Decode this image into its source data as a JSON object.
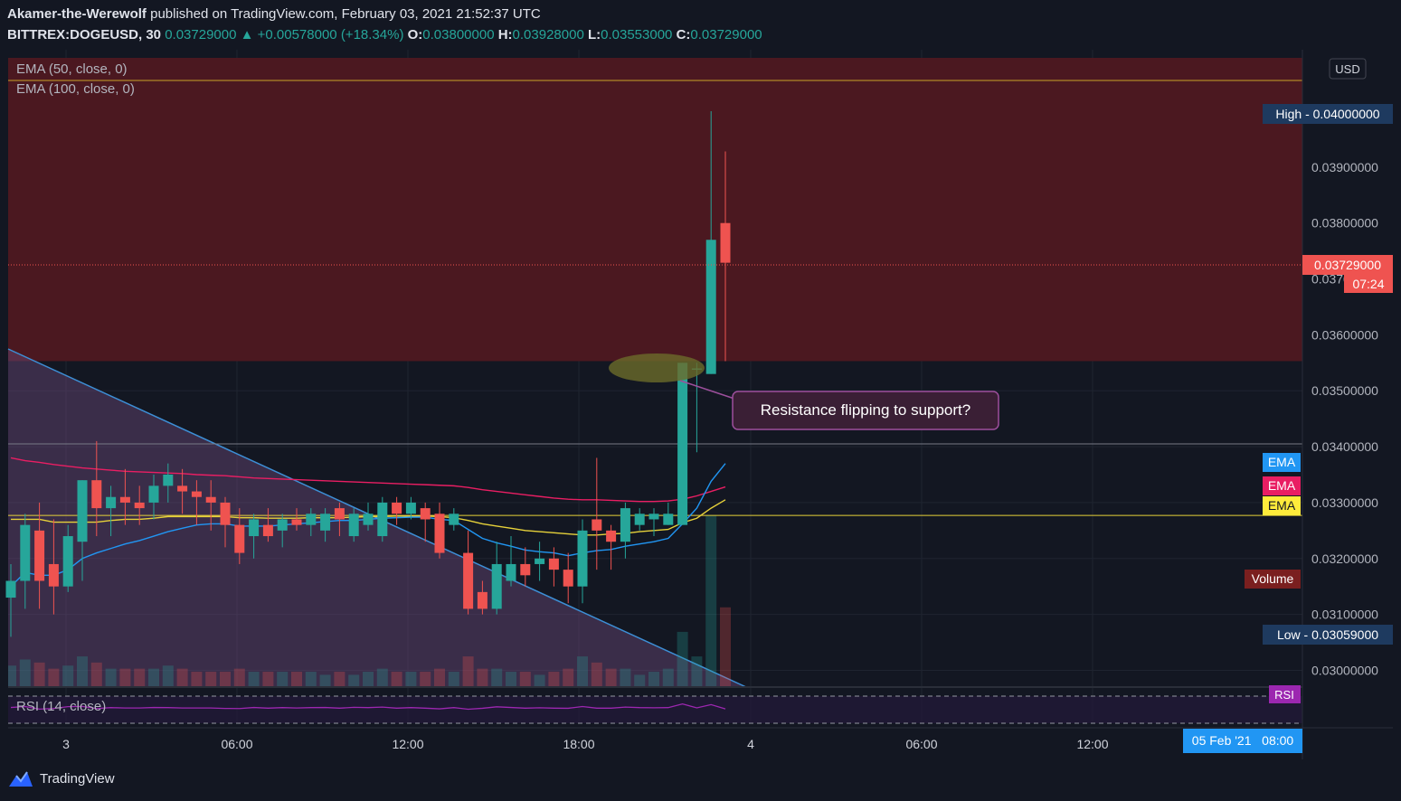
{
  "header": {
    "author": "Akamer-the-Werewolf",
    "published_text": "published on TradingView.com, February 03, 2021 21:52:37 UTC",
    "symbol": "BITTREX:DOGEUSD, 30",
    "last": "0.03729000",
    "change": "▲ +0.00578000 (+18.34%)",
    "o_label": "O:",
    "o": "0.03800000",
    "h_label": "H:",
    "h": "0.03928000",
    "l_label": "L:",
    "l": "0.03553000",
    "c_label": "C:",
    "c": "0.03729000"
  },
  "legend": {
    "ema50": "EMA (50, close, 0)",
    "ema100": "EMA (100, close, 0)",
    "rsi": "RSI (14, close)"
  },
  "annotation": "Resistance flipping to support?",
  "price_axis": {
    "currency": "USD",
    "ticks": [
      "0.04000000",
      "0.03900000",
      "0.03800000",
      "0.03700000",
      "0.03600000",
      "0.03500000",
      "0.03400000",
      "0.03300000",
      "0.03200000",
      "0.03100000",
      "0.03000000"
    ],
    "labels": {
      "high": "High - 0.04000000",
      "last": "0.03729000",
      "countdown": "07:24",
      "ema_tag": "EMA",
      "volume": "Volume",
      "low": "Low - 0.03059000",
      "rsi": "RSI"
    }
  },
  "time_axis": {
    "ticks": [
      "3",
      "06:00",
      "12:00",
      "18:00",
      "4",
      "06:00",
      "12:00"
    ],
    "crosshair": "05 Feb '21   08:00"
  },
  "footer": {
    "brand": "TradingView"
  },
  "colors": {
    "background": "#131722",
    "up": "#26a69a",
    "down": "#ef5350",
    "resistance_zone": "#4b1820",
    "ema_yellow": "#e6d13a",
    "ema_pink": "#e91e63",
    "ema_blue": "#2196f3",
    "wedge": "#4a3a55",
    "rsi": "#9c27b0"
  },
  "chart_data": {
    "type": "candlestick",
    "timeframe": "30",
    "ylim": [
      0.0297,
      0.0411
    ],
    "candles": [
      [
        0.0313,
        0.0316,
        0.0306,
        0.0319
      ],
      [
        0.0316,
        0.0326,
        0.0311,
        0.0328
      ],
      [
        0.0325,
        0.0316,
        0.0311,
        0.033
      ],
      [
        0.0319,
        0.0315,
        0.031,
        0.0327
      ],
      [
        0.0315,
        0.0324,
        0.0314,
        0.0326
      ],
      [
        0.0323,
        0.0334,
        0.0316,
        0.0334
      ],
      [
        0.0334,
        0.0329,
        0.0324,
        0.0341
      ],
      [
        0.0329,
        0.0331,
        0.0324,
        0.0333
      ],
      [
        0.0331,
        0.033,
        0.0326,
        0.0336
      ],
      [
        0.033,
        0.0329,
        0.0326,
        0.0333
      ],
      [
        0.033,
        0.0333,
        0.0327,
        0.0335
      ],
      [
        0.0333,
        0.0335,
        0.033,
        0.0337
      ],
      [
        0.0333,
        0.0332,
        0.0328,
        0.0336
      ],
      [
        0.0332,
        0.0331,
        0.0326,
        0.0334
      ],
      [
        0.0331,
        0.033,
        0.0325,
        0.0334
      ],
      [
        0.033,
        0.0326,
        0.0322,
        0.0331
      ],
      [
        0.0326,
        0.0321,
        0.0319,
        0.0329
      ],
      [
        0.0324,
        0.0327,
        0.032,
        0.0328
      ],
      [
        0.0326,
        0.0324,
        0.0323,
        0.0329
      ],
      [
        0.0325,
        0.0327,
        0.0322,
        0.0328
      ],
      [
        0.0327,
        0.0326,
        0.0325,
        0.0329
      ],
      [
        0.0326,
        0.0328,
        0.0324,
        0.0329
      ],
      [
        0.0325,
        0.0328,
        0.0323,
        0.0329
      ],
      [
        0.0329,
        0.0327,
        0.0324,
        0.033
      ],
      [
        0.0324,
        0.0328,
        0.0323,
        0.0329
      ],
      [
        0.0326,
        0.0328,
        0.0325,
        0.033
      ],
      [
        0.0324,
        0.033,
        0.0323,
        0.0331
      ],
      [
        0.033,
        0.0328,
        0.0326,
        0.0331
      ],
      [
        0.0328,
        0.033,
        0.0327,
        0.0331
      ],
      [
        0.0329,
        0.0327,
        0.0323,
        0.033
      ],
      [
        0.0328,
        0.0321,
        0.032,
        0.033
      ],
      [
        0.0326,
        0.0328,
        0.0325,
        0.0329
      ],
      [
        0.0321,
        0.0311,
        0.031,
        0.0325
      ],
      [
        0.0314,
        0.0311,
        0.031,
        0.0316
      ],
      [
        0.0311,
        0.0319,
        0.031,
        0.0323
      ],
      [
        0.0316,
        0.0319,
        0.0315,
        0.0324
      ],
      [
        0.0319,
        0.0317,
        0.0315,
        0.0322
      ],
      [
        0.0319,
        0.032,
        0.0316,
        0.0323
      ],
      [
        0.032,
        0.0318,
        0.0315,
        0.0322
      ],
      [
        0.0318,
        0.0315,
        0.0312,
        0.0321
      ],
      [
        0.0315,
        0.0325,
        0.0312,
        0.0327
      ],
      [
        0.0327,
        0.0325,
        0.0318,
        0.0338
      ],
      [
        0.0325,
        0.0323,
        0.0318,
        0.0326
      ],
      [
        0.0323,
        0.0329,
        0.032,
        0.033
      ],
      [
        0.0326,
        0.0328,
        0.0325,
        0.0329
      ],
      [
        0.0327,
        0.0328,
        0.0324,
        0.0329
      ],
      [
        0.0326,
        0.0328,
        0.0326,
        0.033
      ],
      [
        0.0326,
        0.0355,
        0.0326,
        0.0355
      ],
      [
        0.0354,
        0.0354,
        0.0339,
        0.0355
      ],
      [
        0.0353,
        0.0377,
        0.0353,
        0.04
      ],
      [
        0.038,
        0.03729,
        0.03553,
        0.03928
      ]
    ],
    "horizontal_lines": [
      0.04055,
      0.03405,
      0.03277
    ],
    "resistance_zone": [
      0.03553,
      0.0411
    ],
    "series": [
      {
        "name": "EMA (50, close, 0)",
        "values": [
          0.0327,
          0.0327,
          0.0327,
          0.03265,
          0.03265,
          0.03265,
          0.03265,
          0.03268,
          0.0327,
          0.0327,
          0.03272,
          0.03275,
          0.03275,
          0.03275,
          0.03275,
          0.03275,
          0.03273,
          0.03273,
          0.03272,
          0.03272,
          0.03272,
          0.03273,
          0.03273,
          0.03273,
          0.03274,
          0.03275,
          0.03275,
          0.03276,
          0.03276,
          0.03276,
          0.03275,
          0.03273,
          0.03268,
          0.03262,
          0.03258,
          0.03254,
          0.0325,
          0.03248,
          0.03246,
          0.03244,
          0.03242,
          0.03242,
          0.03244,
          0.03245,
          0.03248,
          0.0325,
          0.03252,
          0.03264,
          0.03272,
          0.0329,
          0.03305
        ]
      },
      {
        "name": "EMA (100, close, 0)",
        "values": [
          0.0338,
          0.03375,
          0.03372,
          0.03368,
          0.03365,
          0.03362,
          0.0336,
          0.03358,
          0.03356,
          0.03355,
          0.03354,
          0.03353,
          0.03352,
          0.0335,
          0.03349,
          0.03348,
          0.03346,
          0.03344,
          0.03343,
          0.03342,
          0.03341,
          0.0334,
          0.03339,
          0.03338,
          0.03337,
          0.03336,
          0.03335,
          0.03334,
          0.03333,
          0.03332,
          0.03331,
          0.0333,
          0.03327,
          0.03323,
          0.0332,
          0.03317,
          0.03314,
          0.03311,
          0.03308,
          0.03306,
          0.03305,
          0.03305,
          0.03304,
          0.03303,
          0.03302,
          0.03302,
          0.03303,
          0.03306,
          0.03312,
          0.0332,
          0.03328
        ]
      },
      {
        "name": "EMA 20",
        "values": [
          0.0315,
          0.03175,
          0.0317,
          0.0317,
          0.0318,
          0.032,
          0.0321,
          0.03218,
          0.03226,
          0.03232,
          0.0324,
          0.03248,
          0.03254,
          0.0326,
          0.03262,
          0.03262,
          0.03258,
          0.03258,
          0.03258,
          0.0326,
          0.03262,
          0.03264,
          0.03266,
          0.03268,
          0.03268,
          0.0327,
          0.03272,
          0.03273,
          0.03274,
          0.03274,
          0.0327,
          0.03268,
          0.03252,
          0.03236,
          0.03228,
          0.03222,
          0.03215,
          0.03212,
          0.0321,
          0.03205,
          0.0321,
          0.03214,
          0.03216,
          0.03222,
          0.03226,
          0.0323,
          0.03236,
          0.03262,
          0.0329,
          0.03338,
          0.0337
        ]
      }
    ],
    "volume": [
      0.35,
      0.45,
      0.4,
      0.3,
      0.35,
      0.5,
      0.4,
      0.3,
      0.3,
      0.3,
      0.3,
      0.35,
      0.3,
      0.25,
      0.25,
      0.25,
      0.3,
      0.25,
      0.25,
      0.25,
      0.25,
      0.25,
      0.2,
      0.25,
      0.2,
      0.25,
      0.3,
      0.25,
      0.25,
      0.25,
      0.3,
      0.25,
      0.5,
      0.3,
      0.3,
      0.25,
      0.25,
      0.2,
      0.25,
      0.3,
      0.5,
      0.4,
      0.3,
      0.3,
      0.2,
      0.25,
      0.3,
      0.9,
      0.5,
      2.8,
      1.3
    ]
  }
}
